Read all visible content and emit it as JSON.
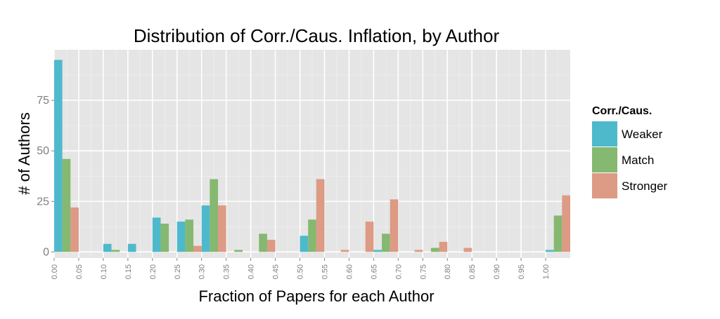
{
  "chart_data": {
    "type": "bar",
    "title": "Distribution of Corr./Caus. Inflation, by Author",
    "xlabel": "Fraction of Papers for each Author",
    "ylabel": "# of Authors",
    "xlim": [
      0.0,
      1.05
    ],
    "ylim": [
      -3,
      100
    ],
    "yticks": [
      0,
      25,
      50,
      75
    ],
    "xticks": [
      "0.00",
      "0.05",
      "0.10",
      "0.15",
      "0.20",
      "0.25",
      "0.30",
      "0.35",
      "0.40",
      "0.45",
      "0.50",
      "0.55",
      "0.60",
      "0.65",
      "0.70",
      "0.75",
      "0.80",
      "0.85",
      "0.90",
      "0.95",
      "1.00"
    ],
    "bin_width": 0.05,
    "grid": true,
    "legend": {
      "title": "Corr./Caus.",
      "position": "right"
    },
    "series": [
      {
        "name": "Weaker",
        "color": "#4fb9cc",
        "values": [
          95,
          0,
          4,
          4,
          17,
          15,
          23,
          0,
          0,
          0,
          8,
          0,
          0,
          1,
          0,
          0,
          0,
          0,
          0,
          0,
          1
        ]
      },
      {
        "name": "Match",
        "color": "#85b870",
        "values": [
          46,
          0,
          1,
          0,
          14,
          16,
          36,
          1,
          9,
          0,
          16,
          0,
          0,
          9,
          0,
          2,
          0,
          0,
          0,
          0,
          18
        ]
      },
      {
        "name": "Stronger",
        "color": "#dd9a85",
        "values": [
          22,
          0,
          0,
          0,
          0,
          3,
          23,
          0,
          6,
          0,
          36,
          1,
          15,
          26,
          1,
          5,
          2,
          0,
          0,
          0,
          28
        ]
      }
    ]
  }
}
